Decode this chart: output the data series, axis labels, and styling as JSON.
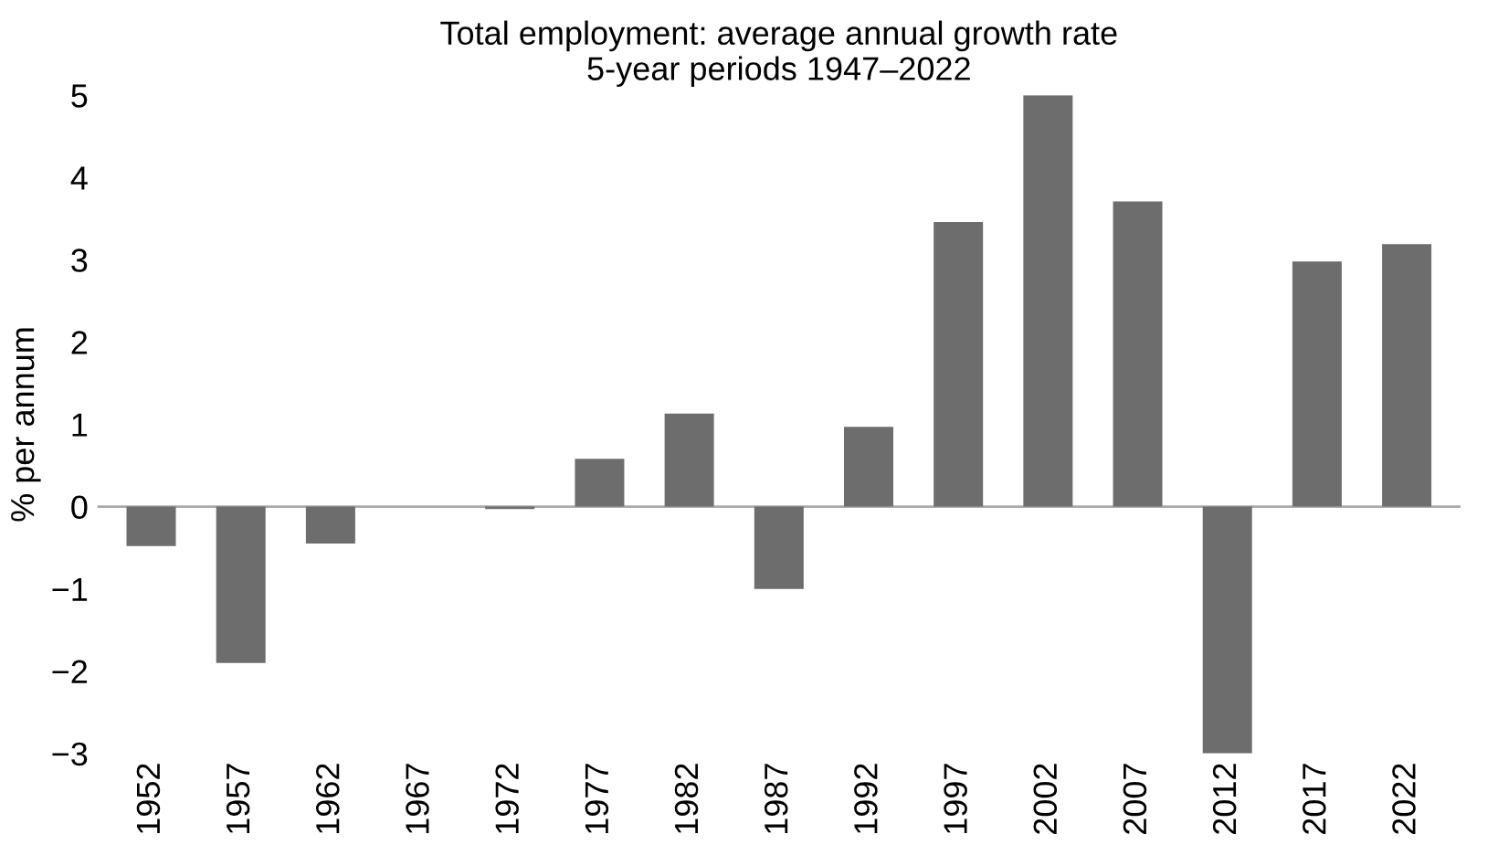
{
  "chart_data": {
    "type": "bar",
    "title": "Total employment: average annual growth rate\n5-year periods 1947–2022",
    "ylabel": "% per annum",
    "categories": [
      "1952",
      "1957",
      "1962",
      "1967",
      "1972",
      "1977",
      "1982",
      "1987",
      "1992",
      "1997",
      "2002",
      "2007",
      "2012",
      "2017",
      "2022"
    ],
    "values": [
      -0.48,
      -1.9,
      -0.45,
      0,
      -0.03,
      0.58,
      1.13,
      -1.0,
      0.97,
      3.46,
      5.0,
      3.71,
      -3.0,
      2.98,
      3.19
    ],
    "color": "#6d6d6d",
    "ylim": [
      -3,
      5
    ],
    "ref_lines": [
      {
        "axis": "y",
        "value": 0,
        "color": "#aaaaaa"
      }
    ],
    "yticks": [
      {
        "value": -3,
        "label": "−3"
      },
      {
        "value": -2,
        "label": "−2"
      },
      {
        "value": -1,
        "label": "−1"
      },
      0,
      1,
      2,
      3,
      4,
      5
    ],
    "grid": false,
    "legend": false
  }
}
